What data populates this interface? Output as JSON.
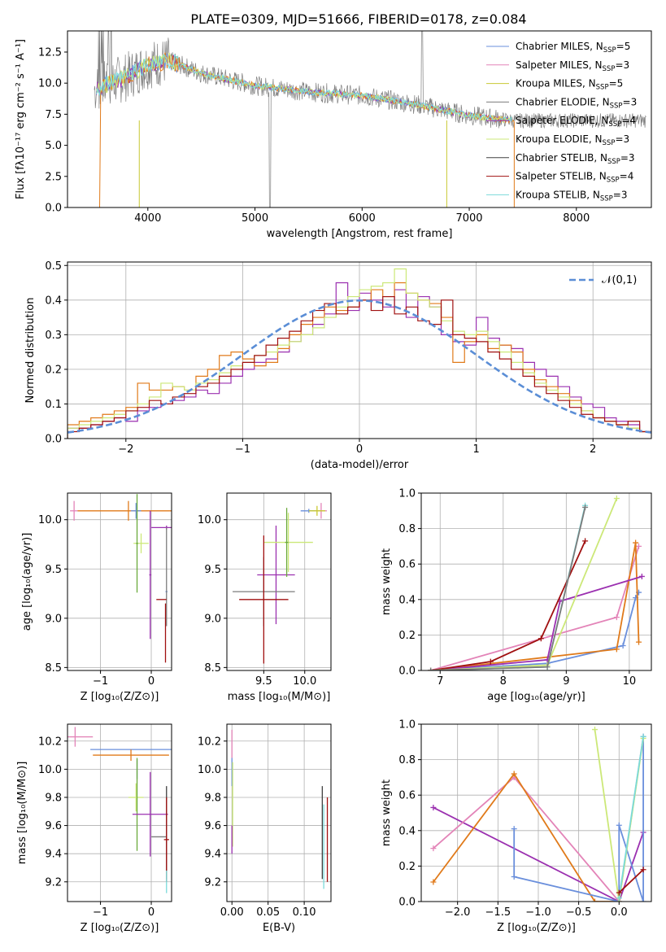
{
  "figure": {
    "title": "PLATE=0309, MJD=51666, FIBERID=0178, z=0.084"
  },
  "colors": {
    "Chabrier MILES": "#6a8fdc",
    "Salpeter MILES": "#e384b8",
    "Kroupa MILES": "#c8c832",
    "Chabrier ELODIE": "#7c7c7c",
    "Salpeter ELODIE": "#9b30b0",
    "Kroupa ELODIE": "#cce878",
    "Chabrier STELIB": "#404040",
    "Salpeter STELIB": "#a01010",
    "Kroupa STELIB": "#7adada",
    "orange": "#e07a1a",
    "green": "#6aaa3a",
    "normal": "#5b8ed6"
  },
  "chart_data": [
    {
      "type": "line",
      "title": "PLATE=0309, MJD=51666, FIBERID=0178, z=0.084",
      "xlabel": "wavelength [Angstrom, rest frame]",
      "ylabel": "Flux [fλ10⁻¹⁷ erg cm⁻² s⁻¹ A⁻¹]",
      "xlim": [
        3250,
        8700
      ],
      "ylim": [
        0,
        14.2
      ],
      "xticks": [
        4000,
        5000,
        6000,
        7000,
        8000
      ],
      "yticks": [
        0.0,
        2.5,
        5.0,
        7.5,
        10.0,
        12.5
      ],
      "legend_position": "top-right",
      "legend": [
        {
          "name": "Chabrier MILES",
          "nssp": "5"
        },
        {
          "name": "Salpeter MILES",
          "nssp": "3"
        },
        {
          "name": "Kroupa MILES",
          "nssp": "5"
        },
        {
          "name": "Chabrier ELODIE",
          "nssp": "3"
        },
        {
          "name": "Salpeter ELODIE",
          "nssp": "4"
        },
        {
          "name": "Kroupa ELODIE",
          "nssp": "3"
        },
        {
          "name": "Chabrier STELIB",
          "nssp": "3"
        },
        {
          "name": "Salpeter STELIB",
          "nssp": "4"
        },
        {
          "name": "Kroupa STELIB",
          "nssp": "3"
        }
      ],
      "spectrum_continuum": {
        "x": [
          3500,
          3800,
          4000,
          4200,
          4500,
          5000,
          5500,
          6000,
          6500,
          7000,
          7400
        ],
        "y": [
          9.5,
          10.5,
          11.5,
          11.8,
          10.8,
          9.8,
          9.3,
          9.0,
          8.3,
          7.4,
          7.0
        ]
      }
    },
    {
      "type": "line",
      "xlabel": "(data-model)/error",
      "ylabel": "Normed distribution",
      "xlim": [
        -2.5,
        2.5
      ],
      "ylim": [
        0,
        0.51
      ],
      "xticks": [
        -2,
        -1,
        0,
        1,
        2
      ],
      "yticks": [
        0.0,
        0.1,
        0.2,
        0.3,
        0.4,
        0.5
      ],
      "legend_position": "top-right",
      "series": [
        {
          "name": "𝒩(0,1)",
          "style": "dashed",
          "mean": 0,
          "sigma": 1
        }
      ],
      "histogram_bins": 50,
      "histograms": [
        {
          "color": "Salpeter ELODIE",
          "values": [
            0.03,
            0.03,
            0.04,
            0.05,
            0.06,
            0.05,
            0.08,
            0.09,
            0.1,
            0.11,
            0.12,
            0.14,
            0.13,
            0.16,
            0.18,
            0.2,
            0.22,
            0.23,
            0.25,
            0.28,
            0.3,
            0.33,
            0.36,
            0.45,
            0.37,
            0.42,
            0.4,
            0.38,
            0.43,
            0.35,
            0.41,
            0.38,
            0.3,
            0.28,
            0.27,
            0.35,
            0.29,
            0.27,
            0.26,
            0.22,
            0.2,
            0.18,
            0.15,
            0.12,
            0.1,
            0.09,
            0.06,
            0.05,
            0.04,
            0.02
          ]
        },
        {
          "color": "orange",
          "values": [
            0.04,
            0.05,
            0.06,
            0.07,
            0.08,
            0.09,
            0.16,
            0.14,
            0.14,
            0.15,
            0.14,
            0.18,
            0.2,
            0.24,
            0.25,
            0.23,
            0.21,
            0.22,
            0.26,
            0.3,
            0.33,
            0.35,
            0.38,
            0.37,
            0.38,
            0.4,
            0.43,
            0.41,
            0.45,
            0.42,
            0.4,
            0.39,
            0.35,
            0.22,
            0.28,
            0.3,
            0.26,
            0.27,
            0.25,
            0.2,
            0.17,
            0.15,
            0.13,
            0.11,
            0.08,
            0.06,
            0.05,
            0.04,
            0.03,
            0.02
          ]
        },
        {
          "color": "Kroupa ELODIE",
          "values": [
            0.03,
            0.04,
            0.05,
            0.06,
            0.07,
            0.08,
            0.1,
            0.12,
            0.16,
            0.15,
            0.14,
            0.16,
            0.17,
            0.19,
            0.21,
            0.22,
            0.24,
            0.25,
            0.27,
            0.28,
            0.3,
            0.32,
            0.35,
            0.38,
            0.41,
            0.43,
            0.44,
            0.45,
            0.49,
            0.42,
            0.4,
            0.38,
            0.34,
            0.31,
            0.3,
            0.31,
            0.28,
            0.25,
            0.22,
            0.19,
            0.16,
            0.14,
            0.12,
            0.1,
            0.08,
            0.06,
            0.05,
            0.04,
            0.03,
            0.02
          ]
        },
        {
          "color": "Salpeter STELIB",
          "values": [
            0.02,
            0.03,
            0.04,
            0.05,
            0.06,
            0.08,
            0.09,
            0.11,
            0.1,
            0.12,
            0.13,
            0.15,
            0.16,
            0.18,
            0.2,
            0.22,
            0.24,
            0.27,
            0.29,
            0.31,
            0.34,
            0.37,
            0.39,
            0.36,
            0.38,
            0.4,
            0.37,
            0.41,
            0.36,
            0.38,
            0.34,
            0.33,
            0.4,
            0.3,
            0.29,
            0.28,
            0.25,
            0.23,
            0.2,
            0.18,
            0.15,
            0.13,
            0.11,
            0.09,
            0.07,
            0.06,
            0.05,
            0.04,
            0.05,
            0.02
          ]
        }
      ]
    },
    {
      "type": "scatter",
      "xlabel": "Z [log₁₀(Z/Z⊙)]",
      "ylabel": "age  [log₁₀(age/yr)]",
      "xlim": [
        -1.65,
        0.4
      ],
      "ylim": [
        8.47,
        10.27
      ],
      "xticks": [
        -1,
        0
      ],
      "yticks": [
        8.5,
        9.0,
        9.5,
        10.0
      ],
      "errorbars": [
        {
          "color": "Salpeter MILES",
          "x": -1.52,
          "y": 10.09,
          "xerr": 0.08,
          "yerr": 0.1
        },
        {
          "color": "orange",
          "x": -0.45,
          "y": 10.09,
          "xerr": 1.0,
          "yerr": 0.1
        },
        {
          "color": "Chabrier MILES",
          "x": -0.3,
          "y": 10.09,
          "xerr": 0.1,
          "yerr": 0.08
        },
        {
          "color": "Kroupa ELODIE",
          "x": -0.2,
          "y": 9.76,
          "xerr": 0.15,
          "yerr": 0.1
        },
        {
          "color": "green",
          "x": -0.28,
          "y": 9.76,
          "xerr": 0.02,
          "yerr": 0.5
        },
        {
          "color": "Salpeter ELODIE",
          "x": -0.02,
          "y": 9.44,
          "xerr": 0.02,
          "yerr": 0.65
        },
        {
          "color": "Salpeter ELODIE",
          "x": 0.3,
          "y": 9.92,
          "xerr": 0.3,
          "yerr": 0.02
        },
        {
          "color": "Chabrier MILES",
          "x": 0.3,
          "y": 9.27,
          "xerr": 0.02,
          "yerr": 0.0
        },
        {
          "color": "Chabrier ELODIE",
          "x": 0.3,
          "y": 9.42,
          "xerr": 0.0,
          "yerr": 0.5
        },
        {
          "color": "Salpeter STELIB",
          "x": 0.28,
          "y": 8.85,
          "xerr": 0.0,
          "yerr": 0.3
        },
        {
          "color": "Salpeter STELIB",
          "x": 0.2,
          "y": 9.19,
          "xerr": 0.1,
          "yerr": 0.0
        }
      ]
    },
    {
      "type": "scatter",
      "xlabel": "mass [log₁₀(M/M⊙)]",
      "xlim": [
        9.05,
        10.32
      ],
      "ylim": [
        8.47,
        10.27
      ],
      "xticks": [
        9.5,
        10.0
      ],
      "yticks": [
        8.5,
        9.0,
        9.5,
        10.0
      ],
      "errorbars": [
        {
          "color": "Chabrier MILES",
          "x": 10.05,
          "y": 10.09,
          "xerr": 0.1,
          "yerr": 0.02
        },
        {
          "color": "Salpeter MILES",
          "x": 10.2,
          "y": 10.09,
          "xerr": 0.07,
          "yerr": 0.08
        },
        {
          "color": "Kroupa MILES",
          "x": 10.15,
          "y": 10.09,
          "xerr": 0.1,
          "yerr": 0.05
        },
        {
          "color": "Salpeter ELODIE",
          "x": 9.65,
          "y": 9.44,
          "xerr": 0.23,
          "yerr": 0.5
        },
        {
          "color": "Kroupa ELODIE",
          "x": 9.8,
          "y": 9.77,
          "xerr": 0.3,
          "yerr": 0.3
        },
        {
          "color": "green",
          "x": 9.78,
          "y": 9.77,
          "xerr": 0.02,
          "yerr": 0.35
        },
        {
          "color": "Chabrier ELODIE",
          "x": 9.5,
          "y": 9.27,
          "xerr": 0.38,
          "yerr": 0.35
        },
        {
          "color": "Salpeter STELIB",
          "x": 9.5,
          "y": 9.19,
          "xerr": 0.3,
          "yerr": 0.65
        }
      ]
    },
    {
      "type": "line",
      "xlabel": "age  [log₁₀(age/yr)]",
      "ylabel": "mass weight",
      "xlim": [
        6.7,
        10.35
      ],
      "ylim": [
        0,
        1.0
      ],
      "xticks": [
        7,
        8,
        9,
        10
      ],
      "yticks": [
        0.0,
        0.2,
        0.4,
        0.6,
        0.8,
        1.0
      ],
      "series": [
        {
          "color": "Chabrier MILES",
          "x": [
            6.85,
            8.7,
            9.9,
            10.1,
            10.15
          ],
          "y": [
            0.0,
            0.04,
            0.14,
            0.41,
            0.44
          ]
        },
        {
          "color": "Salpeter MILES",
          "x": [
            6.85,
            9.8,
            10.15
          ],
          "y": [
            0.0,
            0.3,
            0.7
          ]
        },
        {
          "color": "orange",
          "x": [
            6.85,
            9.8,
            10.1,
            10.15
          ],
          "y": [
            0.0,
            0.12,
            0.72,
            0.16
          ]
        },
        {
          "color": "Salpeter ELODIE",
          "x": [
            6.85,
            8.7,
            8.9,
            10.2
          ],
          "y": [
            0.0,
            0.06,
            0.39,
            0.53
          ]
        },
        {
          "color": "Salpeter STELIB",
          "x": [
            6.85,
            7.8,
            8.6,
            9.3
          ],
          "y": [
            0.0,
            0.05,
            0.18,
            0.73
          ]
        },
        {
          "color": "Kroupa STELIB",
          "x": [
            6.85,
            8.7,
            9.3
          ],
          "y": [
            0.0,
            0.02,
            0.93
          ]
        },
        {
          "color": "Kroupa ELODIE",
          "x": [
            6.85,
            8.7,
            9.8
          ],
          "y": [
            0.0,
            0.03,
            0.97
          ]
        },
        {
          "color": "Chabrier ELODIE",
          "x": [
            6.85,
            8.7,
            9.3
          ],
          "y": [
            0.0,
            0.02,
            0.92
          ]
        }
      ]
    },
    {
      "type": "scatter",
      "xlabel": "Z [log₁₀(Z/Z⊙)]",
      "ylabel": "mass [log₁₀(M/M⊙)]",
      "xlim": [
        -1.65,
        0.4
      ],
      "ylim": [
        9.06,
        10.32
      ],
      "xticks": [
        -1,
        0
      ],
      "yticks": [
        9.2,
        9.4,
        9.6,
        9.8,
        10.0,
        10.2
      ],
      "errorbars": [
        {
          "color": "Salpeter MILES",
          "x": -1.5,
          "y": 10.23,
          "xerr": 0.35,
          "yerr": 0.07
        },
        {
          "color": "Chabrier MILES",
          "x": -0.3,
          "y": 10.14,
          "xerr": 0.9,
          "yerr": 0.0
        },
        {
          "color": "orange",
          "x": -0.4,
          "y": 10.1,
          "xerr": 0.75,
          "yerr": 0.04
        },
        {
          "color": "Chabrier MILES",
          "x": -0.28,
          "y": 10.0,
          "xerr": 0.0,
          "yerr": 0.07
        },
        {
          "color": "Kroupa ELODIE",
          "x": -0.3,
          "y": 9.8,
          "xerr": 0.15,
          "yerr": 0.1
        },
        {
          "color": "green",
          "x": -0.28,
          "y": 9.75,
          "xerr": 0.0,
          "yerr": 0.33
        },
        {
          "color": "Salpeter ELODIE",
          "x": -0.02,
          "y": 9.68,
          "xerr": 0.35,
          "yerr": 0.3
        },
        {
          "color": "Chabrier ELODIE",
          "x": 0.15,
          "y": 9.52,
          "xerr": 0.15,
          "yerr": 0.0
        },
        {
          "color": "Chabrier STELIB",
          "x": 0.3,
          "y": 9.55,
          "xerr": 0.0,
          "yerr": 0.33
        },
        {
          "color": "Salpeter STELIB",
          "x": 0.3,
          "y": 9.5,
          "xerr": 0.05,
          "yerr": 0.3
        },
        {
          "color": "Kroupa STELIB",
          "x": 0.3,
          "y": 9.2,
          "xerr": 0.0,
          "yerr": 0.08
        }
      ]
    },
    {
      "type": "scatter",
      "xlabel": "E(B-V)",
      "xlim": [
        -0.007,
        0.137
      ],
      "ylim": [
        9.06,
        10.32
      ],
      "xticks": [
        0.0,
        0.05,
        0.1
      ],
      "yticks": [
        9.2,
        9.4,
        9.6,
        9.8,
        10.0,
        10.2
      ],
      "errorbars": [
        {
          "color": "Salpeter MILES",
          "x": 0.0,
          "y": 10.18,
          "xerr": 0.0,
          "yerr": 0.1
        },
        {
          "color": "Chabrier MILES",
          "x": 0.0,
          "y": 9.98,
          "xerr": 0.0,
          "yerr": 0.1
        },
        {
          "color": "Kroupa ELODIE",
          "x": 0.001,
          "y": 9.75,
          "xerr": 0.0,
          "yerr": 0.3
        },
        {
          "color": "Salpeter ELODIE",
          "x": 0.0,
          "y": 9.5,
          "xerr": 0.0,
          "yerr": 0.1
        },
        {
          "color": "Chabrier STELIB",
          "x": 0.125,
          "y": 9.55,
          "xerr": 0.0,
          "yerr": 0.33
        },
        {
          "color": "Kroupa STELIB",
          "x": 0.127,
          "y": 9.45,
          "xerr": 0.0,
          "yerr": 0.3
        },
        {
          "color": "Salpeter STELIB",
          "x": 0.132,
          "y": 9.5,
          "xerr": 0.0,
          "yerr": 0.3
        }
      ]
    },
    {
      "type": "line",
      "xlabel": "Z [log₁₀(Z/Z⊙)]",
      "ylabel": "mass weight",
      "xlim": [
        -2.45,
        0.4
      ],
      "ylim": [
        0,
        1.0
      ],
      "xticks": [
        -2.0,
        -1.5,
        -1.0,
        -0.5,
        0.0
      ],
      "yticks": [
        0.0,
        0.2,
        0.4,
        0.6,
        0.8,
        1.0
      ],
      "series": [
        {
          "color": "Salpeter ELODIE",
          "x": [
            -2.3,
            0.0,
            0.3
          ],
          "y": [
            0.53,
            0.0,
            0.39
          ]
        },
        {
          "color": "Salpeter MILES",
          "x": [
            -2.3,
            -1.3,
            0.0,
            0.3
          ],
          "y": [
            0.3,
            0.7,
            0.0,
            0.93
          ]
        },
        {
          "color": "orange",
          "x": [
            -2.3,
            -1.3,
            -0.3,
            0.0
          ],
          "y": [
            0.11,
            0.72,
            0.0,
            0.0
          ]
        },
        {
          "color": "Chabrier MILES",
          "x": [
            -1.3,
            -1.3,
            0.0,
            0.0,
            0.3,
            0.3
          ],
          "y": [
            0.41,
            0.14,
            0.0,
            0.43,
            0.0,
            0.93
          ]
        },
        {
          "color": "Kroupa ELODIE",
          "x": [
            -0.3,
            0.0,
            0.3
          ],
          "y": [
            0.97,
            0.0,
            0.92
          ]
        },
        {
          "color": "Kroupa STELIB",
          "x": [
            0.0,
            0.3
          ],
          "y": [
            0.02,
            0.93
          ]
        },
        {
          "color": "Salpeter STELIB",
          "x": [
            0.0,
            0.3
          ],
          "y": [
            0.05,
            0.18
          ]
        }
      ]
    }
  ]
}
